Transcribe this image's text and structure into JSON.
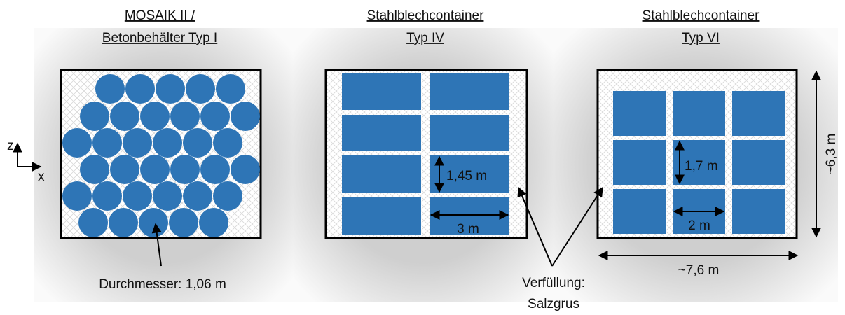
{
  "panels": [
    {
      "title": [
        "MOSAIK II /",
        "Betonbehälter Typ I"
      ]
    },
    {
      "title": [
        "Stahlblechcontainer",
        "Typ IV"
      ]
    },
    {
      "title": [
        "Stahlblechcontainer",
        "Typ VI"
      ]
    }
  ],
  "axes": {
    "z": "z",
    "x": "x"
  },
  "labels": {
    "diameter": "Durchmesser: 1,06 m",
    "height4": "1,45 m",
    "width4": "3 m",
    "height6": "1,7 m",
    "width6": "2 m",
    "room_height": "~6,3 m",
    "room_width": "~7,6 m",
    "fill": [
      "Verfüllung:",
      "Salzgrus"
    ]
  }
}
